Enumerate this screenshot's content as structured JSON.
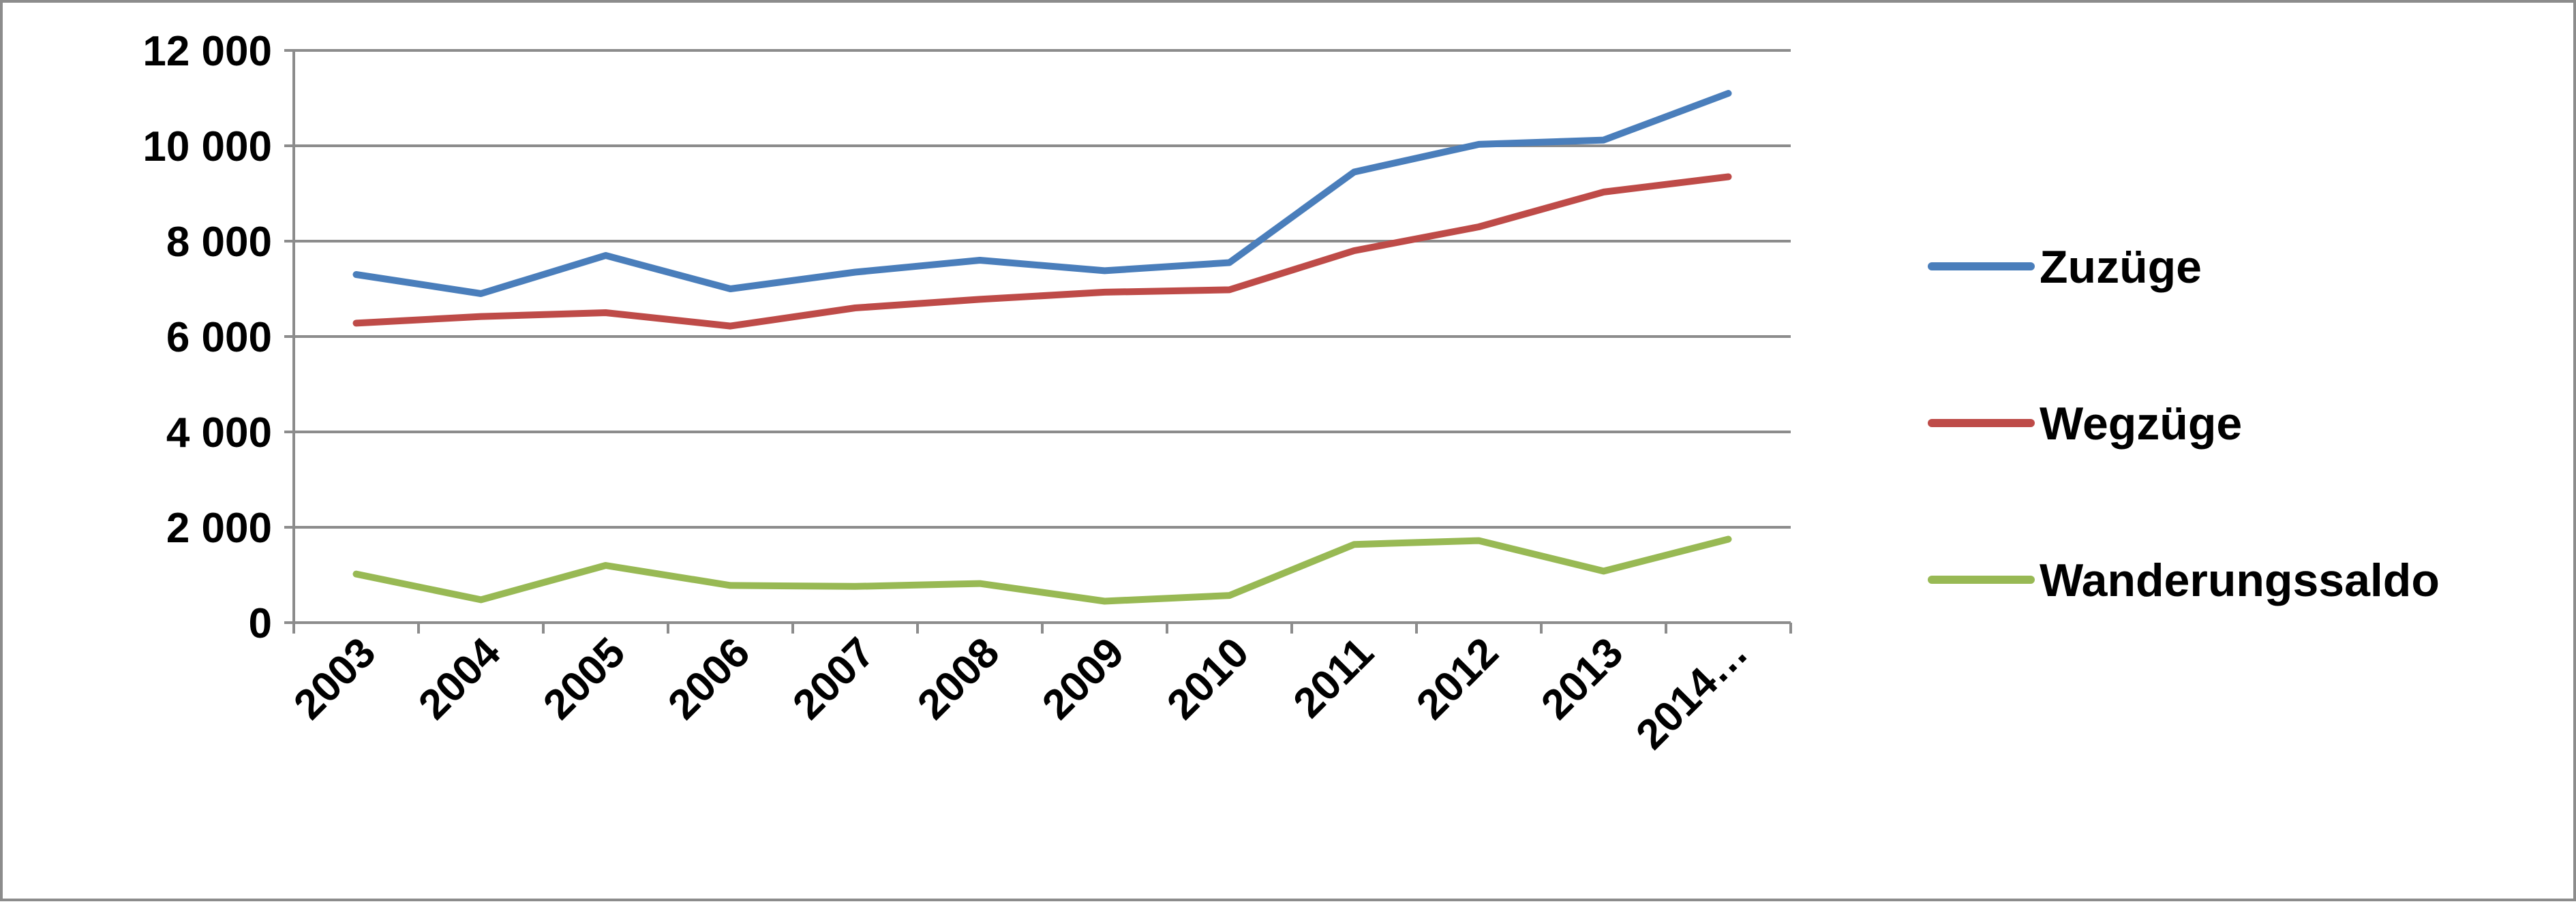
{
  "chart_data": {
    "type": "line",
    "title": "",
    "xlabel": "",
    "ylabel": "",
    "categories": [
      "2003",
      "2004",
      "2005",
      "2006",
      "2007",
      "2008",
      "2009",
      "2010",
      "2011",
      "2012",
      "2013",
      "2014…"
    ],
    "ylim": [
      0,
      12000
    ],
    "yticks": [
      0,
      2000,
      4000,
      6000,
      8000,
      10000,
      12000
    ],
    "ytick_labels": [
      "0",
      "2 000",
      "4 000",
      "6 000",
      "8 000",
      "10 000",
      "12 000"
    ],
    "grid": true,
    "legend_position": "right",
    "series": [
      {
        "name": "Zuzüge",
        "color": "#4a7ebb",
        "values": [
          7300,
          6900,
          7700,
          7000,
          7350,
          7600,
          7380,
          7550,
          9450,
          10030,
          10120,
          11100
        ]
      },
      {
        "name": "Wegzüge",
        "color": "#be4b48",
        "values": [
          6280,
          6420,
          6500,
          6220,
          6600,
          6780,
          6930,
          6980,
          7800,
          8300,
          9030,
          9350
        ]
      },
      {
        "name": "Wanderungssaldo",
        "color": "#98b954",
        "values": [
          1020,
          480,
          1200,
          780,
          760,
          820,
          450,
          570,
          1640,
          1720,
          1080,
          1750
        ]
      }
    ]
  }
}
